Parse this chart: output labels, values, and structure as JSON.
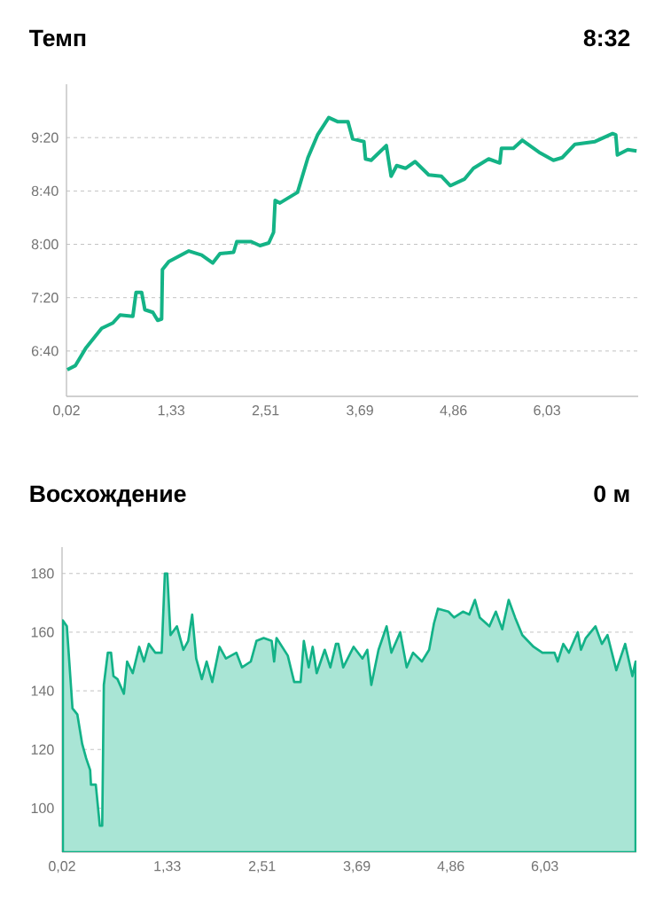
{
  "chart_data": [
    {
      "type": "line",
      "title": "Темп",
      "subtitle": "8:32",
      "xlim": [
        0.02,
        7.17
      ],
      "ylim": [
        366,
        600
      ],
      "xticks": [
        {
          "value": 0.02,
          "label": "0,02"
        },
        {
          "value": 1.33,
          "label": "1,33"
        },
        {
          "value": 2.51,
          "label": "2,51"
        },
        {
          "value": 3.69,
          "label": "3,69"
        },
        {
          "value": 4.86,
          "label": "4,86"
        },
        {
          "value": 6.03,
          "label": "6,03"
        }
      ],
      "yticks": [
        {
          "value": 400,
          "label": "6:40"
        },
        {
          "value": 440,
          "label": "7:20"
        },
        {
          "value": 480,
          "label": "8:00"
        },
        {
          "value": 520,
          "label": "8:40"
        },
        {
          "value": 560,
          "label": "9:20"
        }
      ],
      "grid": "y",
      "series": [
        {
          "color": "#14b386",
          "x": [
            0.03,
            0.13,
            0.26,
            0.46,
            0.6,
            0.69,
            0.85,
            0.89,
            0.96,
            1.0,
            1.1,
            1.16,
            1.21,
            1.22,
            1.3,
            1.55,
            1.71,
            1.85,
            1.94,
            2.11,
            2.15,
            2.33,
            2.44,
            2.55,
            2.61,
            2.63,
            2.69,
            2.91,
            3.04,
            3.16,
            3.3,
            3.41,
            3.54,
            3.6,
            3.74,
            3.76,
            3.83,
            4.02,
            4.08,
            4.15,
            4.26,
            4.38,
            4.55,
            4.71,
            4.82,
            5.0,
            5.11,
            5.3,
            5.44,
            5.46,
            5.61,
            5.72,
            5.93,
            6.11,
            6.22,
            6.38,
            6.63,
            6.85,
            6.89,
            6.91,
            7.04,
            7.15
          ],
          "values": [
            386,
            389,
            402,
            417,
            421,
            427,
            426,
            444,
            444,
            431,
            429,
            423,
            424,
            461,
            467,
            475,
            472,
            466,
            473,
            474,
            482,
            482,
            479,
            481,
            489,
            513,
            511,
            519,
            545,
            562,
            575,
            572,
            572,
            559,
            557,
            544,
            543,
            554,
            531,
            539,
            537,
            542,
            532,
            531,
            524,
            529,
            537,
            544,
            541,
            552,
            552,
            558,
            549,
            543,
            545,
            555,
            557,
            563,
            562,
            547,
            551,
            550
          ]
        }
      ]
    },
    {
      "type": "area",
      "title": "Восхождение",
      "subtitle": "0 м",
      "xlim": [
        0.02,
        7.17
      ],
      "ylim": [
        85,
        189
      ],
      "xticks": [
        {
          "value": 0.02,
          "label": "0,02"
        },
        {
          "value": 1.33,
          "label": "1,33"
        },
        {
          "value": 2.51,
          "label": "2,51"
        },
        {
          "value": 3.69,
          "label": "3,69"
        },
        {
          "value": 4.86,
          "label": "4,86"
        },
        {
          "value": 6.03,
          "label": "6,03"
        }
      ],
      "yticks": [
        100,
        120,
        140,
        160,
        180
      ],
      "grid": "y",
      "series": [
        {
          "color": "#a9e5d5",
          "x": [
            0.03,
            0.08,
            0.15,
            0.21,
            0.27,
            0.32,
            0.37,
            0.38,
            0.44,
            0.49,
            0.52,
            0.54,
            0.59,
            0.63,
            0.66,
            0.71,
            0.79,
            0.83,
            0.9,
            0.98,
            1.04,
            1.1,
            1.18,
            1.26,
            1.3,
            1.33,
            1.37,
            1.45,
            1.53,
            1.59,
            1.64,
            1.69,
            1.76,
            1.82,
            1.89,
            1.98,
            2.06,
            2.19,
            2.26,
            2.37,
            2.44,
            2.53,
            2.63,
            2.66,
            2.69,
            2.83,
            2.91,
            2.99,
            3.03,
            3.09,
            3.14,
            3.19,
            3.29,
            3.36,
            3.43,
            3.46,
            3.52,
            3.65,
            3.76,
            3.82,
            3.87,
            3.96,
            4.06,
            4.12,
            4.23,
            4.31,
            4.39,
            4.5,
            4.59,
            4.65,
            4.7,
            4.83,
            4.9,
            5.01,
            5.09,
            5.16,
            5.22,
            5.34,
            5.42,
            5.5,
            5.58,
            5.66,
            5.75,
            5.89,
            6.0,
            6.15,
            6.19,
            6.26,
            6.33,
            6.44,
            6.48,
            6.54,
            6.66,
            6.74,
            6.81,
            6.92,
            7.03,
            7.12,
            7.16
          ],
          "values": [
            164,
            162,
            134,
            132,
            122,
            117,
            113,
            108,
            108,
            94,
            94,
            142,
            153,
            153,
            145,
            144,
            139,
            150,
            146,
            155,
            150,
            156,
            153,
            153,
            180,
            180,
            159,
            162,
            154,
            157,
            166,
            151,
            144,
            150,
            143,
            155,
            151,
            153,
            148,
            150,
            157,
            158,
            157,
            150,
            158,
            152,
            143,
            143,
            157,
            148,
            155,
            146,
            154,
            148,
            156,
            156,
            148,
            155,
            151,
            154,
            142,
            154,
            162,
            153,
            160,
            148,
            153,
            150,
            154,
            163,
            168,
            167,
            165,
            167,
            166,
            171,
            165,
            162,
            167,
            161,
            171,
            165,
            159,
            155,
            153,
            153,
            150,
            156,
            153,
            160,
            154,
            158,
            162,
            156,
            159,
            147,
            156,
            145,
            150
          ]
        }
      ]
    }
  ]
}
